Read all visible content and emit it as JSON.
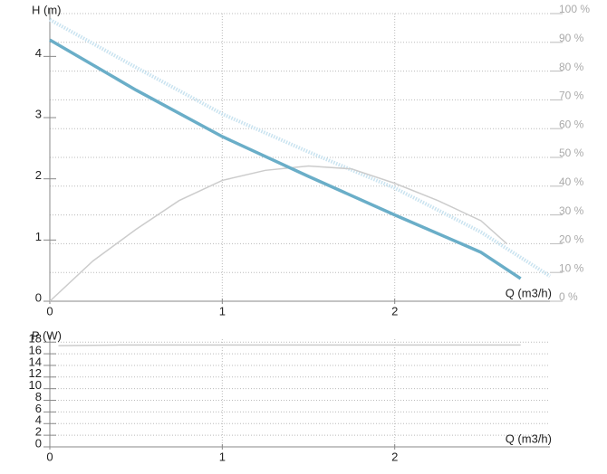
{
  "chart_data": [
    {
      "type": "line",
      "y_label": "H (m)",
      "x_label": "Q (m3/h)",
      "xlim": [
        0,
        2.9
      ],
      "xticks": [
        0,
        1,
        2
      ],
      "ylim": [
        0,
        4.7
      ],
      "yticks": [
        0,
        1,
        2,
        3,
        4
      ],
      "y2lim": [
        0,
        100
      ],
      "y2ticks": [
        {
          "value": 0,
          "label": "0 %"
        },
        {
          "value": 10,
          "label": "10 %"
        },
        {
          "value": 20,
          "label": "20 %"
        },
        {
          "value": 30,
          "label": "30 %"
        },
        {
          "value": 40,
          "label": "40 %"
        },
        {
          "value": 50,
          "label": "50 %"
        },
        {
          "value": 60,
          "label": "60 %"
        },
        {
          "value": 70,
          "label": "70 %"
        },
        {
          "value": 80,
          "label": "80 %"
        },
        {
          "value": 90,
          "label": "90 %"
        },
        {
          "value": 100,
          "label": "100 %"
        }
      ],
      "grid": true,
      "series": [
        {
          "color": "#c9e3f0",
          "line_style": "dotted",
          "line_width": 4,
          "x": [
            0,
            0.5,
            1,
            1.5,
            2,
            2.5,
            2.9
          ],
          "values": [
            4.6,
            3.82,
            3.06,
            2.44,
            1.85,
            1.13,
            0.41
          ]
        },
        {
          "color": "#cccccc",
          "line_style": "solid",
          "line_width": 1.5,
          "axis": "y2",
          "x": [
            0,
            0.25,
            0.5,
            0.75,
            1,
            1.25,
            1.5,
            1.75,
            2,
            2.25,
            2.5,
            2.65
          ],
          "values": [
            0,
            14,
            25,
            35,
            42,
            45.5,
            47,
            46,
            41,
            35,
            28,
            20
          ]
        },
        {
          "color": "#6aaec8",
          "line_style": "solid",
          "line_width": 3.5,
          "x": [
            0,
            0.5,
            1,
            1.5,
            2,
            2.5,
            2.73
          ],
          "values": [
            4.27,
            3.45,
            2.69,
            2.04,
            1.41,
            0.8,
            0.37
          ]
        }
      ]
    },
    {
      "type": "line",
      "y_label": "P (W)",
      "x_label": "Q (m3/h)",
      "xlim": [
        0,
        2.9
      ],
      "xticks": [
        0,
        1,
        2
      ],
      "ylim": [
        0,
        18.5
      ],
      "yticks": [
        0,
        2,
        4,
        6,
        8,
        10,
        12,
        14,
        16,
        18
      ],
      "grid": true,
      "series": [
        {
          "color": "#cccccc",
          "line_style": "solid",
          "line_width": 1.5,
          "x": [
            0.05,
            0.4,
            2.73
          ],
          "values": [
            17.4,
            17.5,
            17.5
          ]
        }
      ]
    }
  ]
}
